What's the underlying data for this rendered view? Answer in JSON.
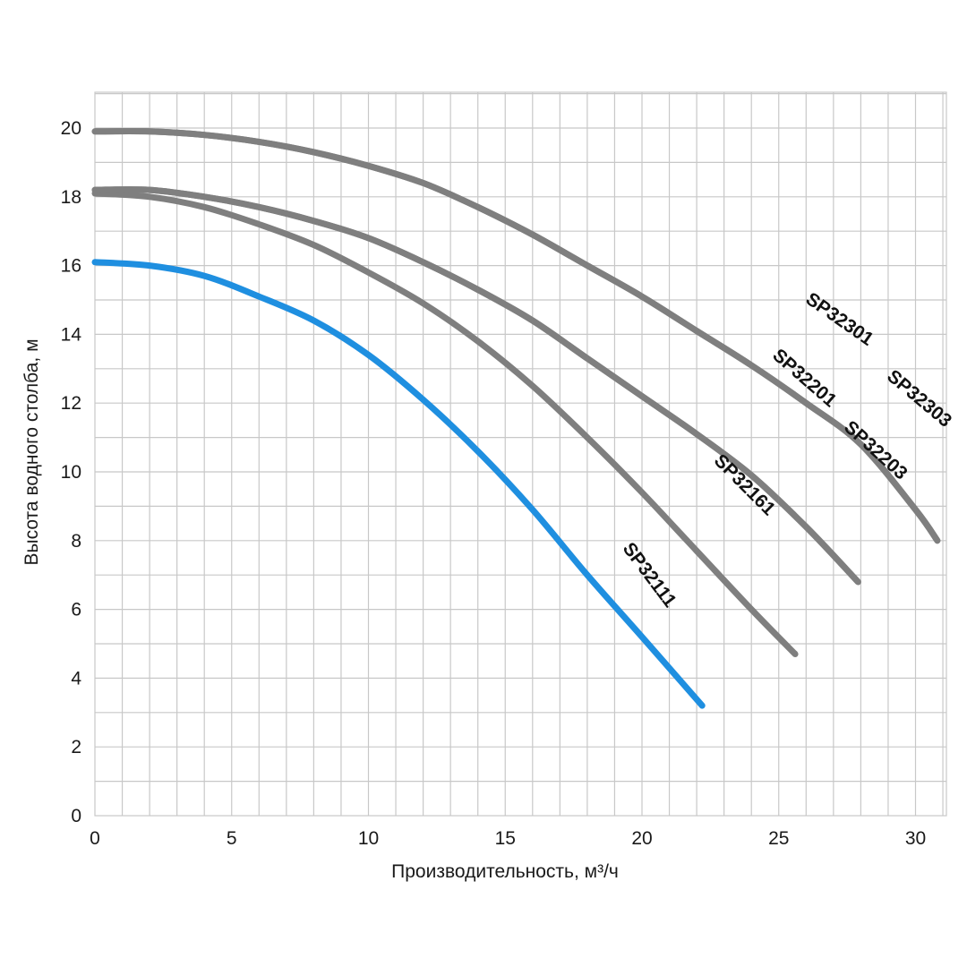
{
  "chart_data": {
    "type": "line",
    "title": "",
    "xlabel": "Производительность, м³/ч",
    "ylabel": "Высота водного столба, м",
    "xlim": [
      0,
      31
    ],
    "ylim": [
      0,
      20.5
    ],
    "x_ticks": [
      0,
      5,
      10,
      15,
      20,
      25,
      30
    ],
    "y_ticks": [
      0,
      2,
      4,
      6,
      8,
      10,
      12,
      14,
      16,
      18,
      20
    ],
    "x_minor_step": 1,
    "y_minor_step": 1,
    "grid": true,
    "legend": "none",
    "series": [
      {
        "name": "SP32111",
        "color": "#1f8fe0",
        "points": [
          [
            0,
            16.1
          ],
          [
            2,
            16.0
          ],
          [
            4,
            15.7
          ],
          [
            6,
            15.1
          ],
          [
            8,
            14.4
          ],
          [
            10,
            13.4
          ],
          [
            12,
            12.1
          ],
          [
            14,
            10.6
          ],
          [
            16,
            8.9
          ],
          [
            18,
            7.0
          ],
          [
            20,
            5.2
          ],
          [
            22.2,
            3.2
          ]
        ]
      },
      {
        "name": "SP32161",
        "color": "#7f7f7f",
        "points": [
          [
            0,
            18.1
          ],
          [
            2,
            18.0
          ],
          [
            4,
            17.7
          ],
          [
            6,
            17.2
          ],
          [
            8,
            16.6
          ],
          [
            10,
            15.8
          ],
          [
            12,
            14.9
          ],
          [
            14,
            13.8
          ],
          [
            16,
            12.5
          ],
          [
            18,
            11.0
          ],
          [
            20,
            9.4
          ],
          [
            22,
            7.7
          ],
          [
            24,
            6.0
          ],
          [
            25.6,
            4.7
          ]
        ]
      },
      {
        "name": "SP32201",
        "color": "#7f7f7f",
        "points": [
          [
            0,
            18.2
          ],
          [
            2,
            18.2
          ],
          [
            4,
            18.0
          ],
          [
            6,
            17.7
          ],
          [
            8,
            17.3
          ],
          [
            10,
            16.8
          ],
          [
            12,
            16.1
          ],
          [
            14,
            15.3
          ],
          [
            16,
            14.4
          ],
          [
            18,
            13.3
          ],
          [
            20,
            12.2
          ],
          [
            22,
            11.1
          ],
          [
            24,
            9.9
          ],
          [
            26,
            8.4
          ],
          [
            27.9,
            6.8
          ]
        ]
      },
      {
        "name": "SP32203",
        "color": "#7f7f7f",
        "points": [
          [
            0,
            18.2
          ],
          [
            2,
            18.2
          ],
          [
            4,
            18.0
          ],
          [
            6,
            17.7
          ],
          [
            8,
            17.3
          ],
          [
            10,
            16.8
          ],
          [
            12,
            16.1
          ],
          [
            14,
            15.3
          ],
          [
            16,
            14.4
          ],
          [
            18,
            13.3
          ],
          [
            20,
            12.2
          ],
          [
            22,
            11.1
          ],
          [
            24,
            9.9
          ],
          [
            26,
            8.4
          ],
          [
            27.9,
            6.8
          ]
        ]
      },
      {
        "name": "SP32301",
        "color": "#7f7f7f",
        "points": [
          [
            0,
            19.9
          ],
          [
            2,
            19.9
          ],
          [
            4,
            19.8
          ],
          [
            6,
            19.6
          ],
          [
            8,
            19.3
          ],
          [
            10,
            18.9
          ],
          [
            12,
            18.4
          ],
          [
            14,
            17.7
          ],
          [
            16,
            16.9
          ],
          [
            18,
            16.0
          ],
          [
            20,
            15.1
          ],
          [
            22,
            14.1
          ],
          [
            24,
            13.1
          ],
          [
            26,
            12.0
          ],
          [
            28,
            10.8
          ],
          [
            30,
            8.9
          ],
          [
            30.8,
            8.0
          ]
        ]
      },
      {
        "name": "SP32303",
        "color": "#7f7f7f",
        "points": [
          [
            0,
            19.9
          ],
          [
            2,
            19.9
          ],
          [
            4,
            19.8
          ],
          [
            6,
            19.6
          ],
          [
            8,
            19.3
          ],
          [
            10,
            18.9
          ],
          [
            12,
            18.4
          ],
          [
            14,
            17.7
          ],
          [
            16,
            16.9
          ],
          [
            18,
            16.0
          ],
          [
            20,
            15.1
          ],
          [
            22,
            14.1
          ],
          [
            24,
            13.1
          ],
          [
            26,
            12.0
          ],
          [
            28,
            10.8
          ],
          [
            30,
            8.9
          ],
          [
            30.8,
            8.0
          ]
        ]
      }
    ],
    "annotations": [
      {
        "text": "SP32111",
        "x": 20.1,
        "y": 6.9,
        "rotate": 53
      },
      {
        "text": "SP32161",
        "x": 23.6,
        "y": 9.5,
        "rotate": 45
      },
      {
        "text": "SP32201",
        "x": 25.8,
        "y": 12.6,
        "rotate": 41
      },
      {
        "text": "SP32203",
        "x": 28.4,
        "y": 10.5,
        "rotate": 42
      },
      {
        "text": "SP32301",
        "x": 27.1,
        "y": 14.3,
        "rotate": 35
      },
      {
        "text": "SP32303",
        "x": 30.0,
        "y": 12.0,
        "rotate": 40
      }
    ]
  }
}
